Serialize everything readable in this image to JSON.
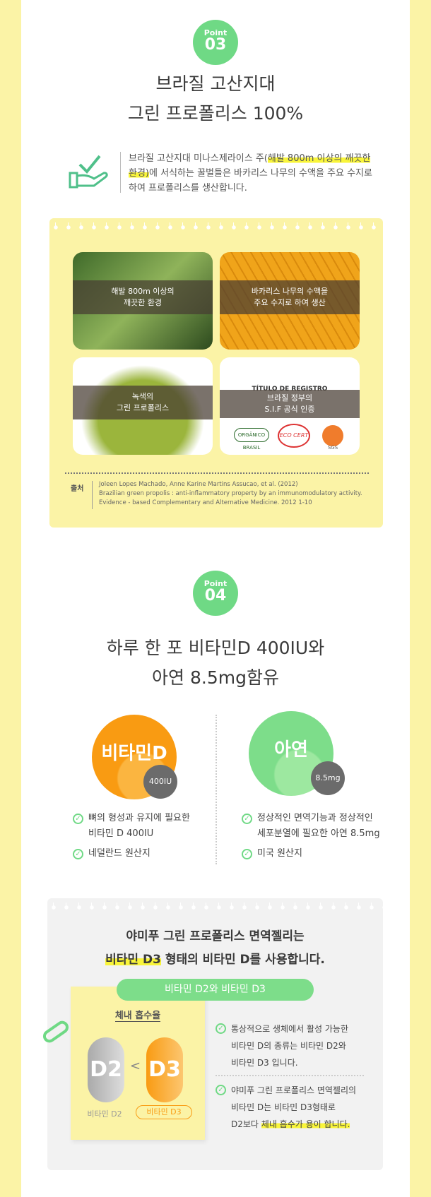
{
  "colors": {
    "accent_green": "#6fd985",
    "side_yellow": "#fbf3a6",
    "orange": "#f99b12",
    "highlight": "#f9f53a"
  },
  "point3": {
    "badge_label": "Point",
    "badge_number": "03",
    "title_line1": "브라질 고산지대",
    "title_line2": "그린 프로폴리스 100%",
    "desc_before": "브라질 고산지대 미나스제라이스 주(",
    "desc_highlight": "해발 800m 이상의 깨끗한 환경)",
    "desc_after": "에 서식하는 꿀벌들은 바카리스 나무의 수액을 주요 수지로 하여 프로폴리스를 생산합니다.",
    "tiles": [
      {
        "label": "해발 800m 이상의\n깨끗한 환경"
      },
      {
        "label": "바카리스 나무의 수액을\n주요 수지로 하여 생산"
      },
      {
        "label": "녹색의\n그린 프로폴리스"
      },
      {
        "label": "브라질 정부의\nS.I.F 공식 인증"
      }
    ],
    "cert_heading": "TÍTULO DE REGISTRO",
    "logos": [
      "ORGÂNICO BRASIL",
      "ECO CERT",
      "SGS"
    ],
    "source_label": "출처",
    "source_lines": [
      "Joleen Lopes Machado, Anne Karine Martins Assucao, et al. (2012)",
      "Brazilian green propolis : anti-inflammatory property by an immunomodulatory activity.",
      "Evidence - based Complementary and Alternative Medicine. 2012 1-10"
    ]
  },
  "point4": {
    "badge_label": "Point",
    "badge_number": "04",
    "title_line1": "하루 한 포 비타민D 400IU와",
    "title_line2": "아연 8.5mg함유",
    "vitd": {
      "name": "비타민D",
      "amount": "400IU",
      "items": [
        "뼈의 형성과 유지에 필요한\n비타민 D 400IU",
        "네덜란드 원산지"
      ]
    },
    "zinc": {
      "name": "아연",
      "amount": "8.5mg",
      "items": [
        "정상적인 면역기능과 정상적인\n세포분열에 필요한 아연 8.5mg",
        "미국 원산지"
      ]
    }
  },
  "d3": {
    "heading_line1": "야미푸 그린 프로폴리스 면역젤리는",
    "heading_highlight": "비타민 D3",
    "heading_line2_rest": " 형태의 비타민 D를 사용합니다.",
    "pill": "비타민 D2와 비타민 D3",
    "note_title": "체내 흡수율",
    "d2_caps": "D2",
    "d3_caps": "D3",
    "compare": "<",
    "d2_label": "비타민 D2",
    "d3_label": "비타민 D3",
    "item1": "통상적으로 생체에서 활성 가능한\n비타민 D의 종류는 비타민 D2와\n비타민 D3 입니다.",
    "item2_before": "야미푸 그린 프로폴리스 면역젤리의\n비타민 D는 비타민 D3형태로\nD2보다 ",
    "item2_highlight": "체내 흡수가 용이 합니다."
  }
}
